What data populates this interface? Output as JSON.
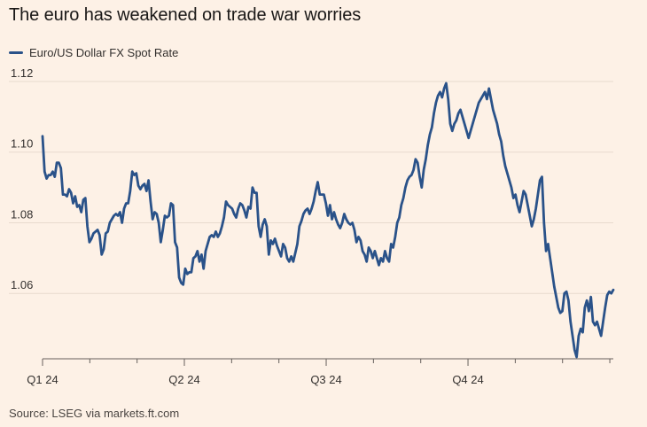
{
  "title": "The euro has weakened on trade war worries",
  "source": "Source: LSEG via markets.ft.com",
  "colors": {
    "line": "#2a5289",
    "grid": "#e8dacd",
    "axis": "#66605c",
    "background": "#fdf1e6"
  },
  "chart_data": {
    "type": "line",
    "title": "The euro has weakened on trade war worries",
    "xlabel": "",
    "ylabel": "",
    "ylim": [
      1.0415,
      1.1225
    ],
    "xlim": [
      0,
      163
    ],
    "yticks": [
      1.06,
      1.08,
      1.1,
      1.12
    ],
    "ytick_labels": [
      "1.06",
      "1.08",
      "1.10",
      "1.12"
    ],
    "xticks": [
      {
        "pos": 0,
        "label": "Q1 24"
      },
      {
        "pos": 40.5,
        "label": "Q2 24"
      },
      {
        "pos": 81,
        "label": "Q3 24"
      },
      {
        "pos": 121.5,
        "label": "Q4 24"
      }
    ],
    "minor_xticks": [
      13.5,
      27,
      54,
      67.5,
      94.5,
      108,
      135,
      148.5,
      162
    ],
    "series": [
      {
        "name": "Euro/US Dollar FX Spot Rate",
        "values": [
          1.1045,
          1.0945,
          1.0925,
          1.0935,
          1.0935,
          1.0945,
          1.093,
          1.097,
          1.097,
          1.0955,
          1.088,
          1.088,
          1.0875,
          1.0895,
          1.0885,
          1.0855,
          1.0875,
          1.0845,
          1.085,
          1.083,
          1.0865,
          1.087,
          1.079,
          1.0745,
          1.0755,
          1.077,
          1.0775,
          1.078,
          1.0765,
          1.071,
          1.0725,
          1.077,
          1.0775,
          1.08,
          1.081,
          1.082,
          1.0825,
          1.082,
          1.083,
          1.08,
          1.084,
          1.0855,
          1.0855,
          1.089,
          1.0945,
          1.0935,
          1.094,
          1.0905,
          1.0895,
          1.0905,
          1.091,
          1.089,
          1.092,
          1.086,
          1.081,
          1.083,
          1.0825,
          1.08,
          1.0745,
          1.078,
          1.082,
          1.0815,
          1.082,
          1.0855,
          1.085,
          1.0745,
          1.073,
          1.0645,
          1.063,
          1.0625,
          1.067,
          1.0655,
          1.066,
          1.066,
          1.07,
          1.0705,
          1.072,
          1.069,
          1.071,
          1.067,
          1.072,
          1.074,
          1.076,
          1.0765,
          1.076,
          1.0775,
          1.076,
          1.077,
          1.079,
          1.0815,
          1.086,
          1.085,
          1.0845,
          1.084,
          1.0825,
          1.0815,
          1.084,
          1.0855,
          1.085,
          1.0835,
          1.0815,
          1.0845,
          1.084,
          1.09,
          1.0885,
          1.0885,
          1.079,
          1.076,
          1.0795,
          1.081,
          1.079,
          1.071,
          1.075,
          1.074,
          1.0755,
          1.0735,
          1.072,
          1.0705,
          1.074,
          1.073,
          1.07,
          1.069,
          1.0705,
          1.069,
          1.0715,
          1.074,
          1.079,
          1.0805,
          1.0825,
          1.0835,
          1.084,
          1.0825,
          1.084,
          1.086,
          1.089,
          1.0915,
          1.088,
          1.088,
          1.088,
          1.0855,
          1.082,
          1.085,
          1.081,
          1.083,
          1.081,
          1.0795,
          1.0785,
          1.08,
          1.0825,
          1.081,
          1.08,
          1.0795,
          1.08,
          1.078,
          1.0745,
          1.076,
          1.075,
          1.072,
          1.071,
          1.069,
          1.073,
          1.072,
          1.07,
          1.072,
          1.07,
          1.068,
          1.07,
          1.069,
          1.072,
          1.07,
          1.069,
          1.074,
          1.073,
          1.076,
          1.08,
          1.0815,
          1.085,
          1.087,
          1.09,
          1.092,
          1.093,
          1.0935,
          1.095,
          1.098,
          1.097,
          1.093,
          1.09,
          1.095,
          1.098,
          1.102,
          1.105,
          1.107,
          1.111,
          1.114,
          1.116,
          1.117,
          1.1155,
          1.118,
          1.1195,
          1.115,
          1.108,
          1.106,
          1.108,
          1.109,
          1.111,
          1.112,
          1.11,
          1.108,
          1.106,
          1.104,
          1.106,
          1.108,
          1.11,
          1.112,
          1.114,
          1.115,
          1.116,
          1.117,
          1.115,
          1.118,
          1.115,
          1.112,
          1.11,
          1.108,
          1.105,
          1.103,
          1.099,
          1.096,
          1.094,
          1.092,
          1.09,
          1.087,
          1.088,
          1.085,
          1.083,
          1.086,
          1.089,
          1.088,
          1.085,
          1.082,
          1.079,
          1.081,
          1.084,
          1.088,
          1.092,
          1.093,
          1.08,
          1.072,
          1.074,
          1.07,
          1.066,
          1.062,
          1.059,
          1.056,
          1.0545,
          1.055,
          1.06,
          1.0605,
          1.058,
          1.052,
          1.048,
          1.044,
          1.042,
          1.048,
          1.05,
          1.049,
          1.056,
          1.058,
          1.055,
          1.059,
          1.052,
          1.051,
          1.052,
          1.05,
          1.048,
          1.052,
          1.056,
          1.0595,
          1.0605,
          1.06,
          1.061
        ]
      }
    ]
  }
}
